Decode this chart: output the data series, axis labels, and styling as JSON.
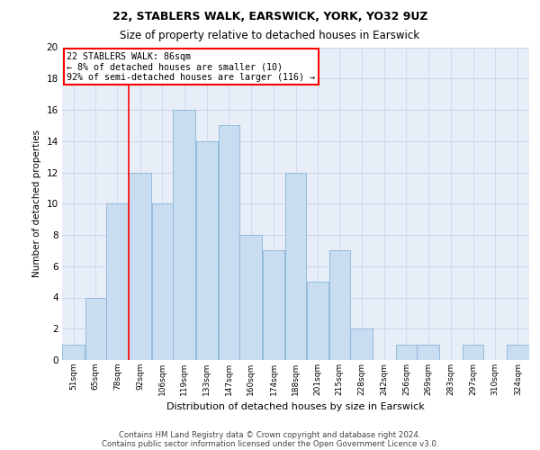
{
  "title1": "22, STABLERS WALK, EARSWICK, YORK, YO32 9UZ",
  "title2": "Size of property relative to detached houses in Earswick",
  "xlabel": "Distribution of detached houses by size in Earswick",
  "ylabel": "Number of detached properties",
  "categories": [
    "51sqm",
    "65sqm",
    "78sqm",
    "92sqm",
    "106sqm",
    "119sqm",
    "133sqm",
    "147sqm",
    "160sqm",
    "174sqm",
    "188sqm",
    "201sqm",
    "215sqm",
    "228sqm",
    "242sqm",
    "256sqm",
    "269sqm",
    "283sqm",
    "297sqm",
    "310sqm",
    "324sqm"
  ],
  "values": [
    1,
    4,
    10,
    12,
    10,
    16,
    14,
    15,
    8,
    7,
    12,
    5,
    7,
    2,
    0,
    1,
    1,
    0,
    1,
    0,
    1
  ],
  "bar_color": "#c9ddf0",
  "bar_edge_color": "#8ab4d8",
  "grid_color": "#c8d4e8",
  "background_color": "#e8eef8",
  "bin_edges": [
    51,
    65,
    78,
    92,
    106,
    119,
    133,
    147,
    160,
    174,
    188,
    201,
    215,
    228,
    242,
    256,
    269,
    283,
    297,
    310,
    324,
    338
  ],
  "property_line_x": 92,
  "annotation_text": "22 STABLERS WALK: 86sqm\n← 8% of detached houses are smaller (10)\n92% of semi-detached houses are larger (116) →",
  "annotation_box_color": "white",
  "annotation_box_edge_color": "red",
  "property_line_color": "red",
  "ylim": [
    0,
    20
  ],
  "yticks": [
    0,
    2,
    4,
    6,
    8,
    10,
    12,
    14,
    16,
    18,
    20
  ],
  "footer1": "Contains HM Land Registry data © Crown copyright and database right 2024.",
  "footer2": "Contains public sector information licensed under the Open Government Licence v3.0."
}
